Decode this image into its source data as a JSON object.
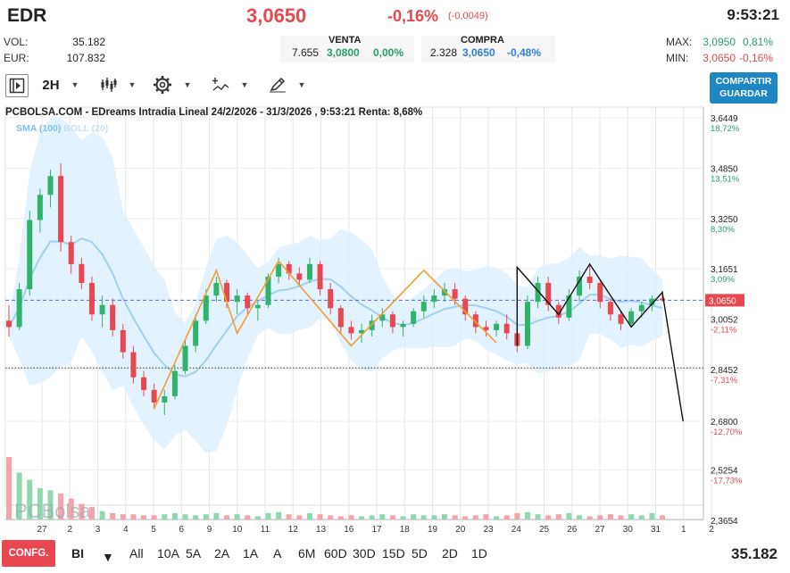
{
  "header": {
    "ticker": "EDR",
    "price": "3,0650",
    "change_pct": "-0,16%",
    "change_abs": "(-0,0049)",
    "time": "9:53:21"
  },
  "stats": {
    "vol_label": "VOL:",
    "vol_value": "35.182",
    "eur_label": "EUR:",
    "eur_value": "107.832",
    "max_label": "MAX:",
    "max_value": "3,0950",
    "max_pct": "0,81%",
    "min_label": "MIN:",
    "min_value": "3,0650",
    "min_pct": "-0,16%"
  },
  "orderbook": {
    "venta_label": "VENTA",
    "venta_qty": "7.655",
    "venta_price": "3,0800",
    "venta_pct": "0,00%",
    "compra_label": "COMPRA",
    "compra_qty": "2.328",
    "compra_price": "3,0650",
    "compra_pct": "-0,48%"
  },
  "toolbar": {
    "interval": "2H",
    "share_line1": "COMPARTIR",
    "share_line2": "GUARDAR"
  },
  "chart": {
    "title": "PCBOLSA.COM - EDreams Intradia Lineal 24/2/2026 - 31/3/2026 , 9:53:21 Renta: 8,68%",
    "sma_label": "SMA (100)",
    "boll_label": "BOLL (20)",
    "watermark": "PCBolsa",
    "current_price_tag": "3,0650",
    "colors": {
      "up": "#2fb36b",
      "down": "#e8474f",
      "zigzag": "#f0a030",
      "pattern": "#111111",
      "band": "#dcefff",
      "sma": "#9fd0f0"
    }
  },
  "chart_data": {
    "type": "candlestick",
    "title": "PCBOLSA.COM - EDreams Intradia Lineal 24/2/2026 - 31/3/2026 , 9:53:21 Renta: 8,68%",
    "y_axis_ticks": [
      {
        "value": "3,6449",
        "pct": "18,72%"
      },
      {
        "value": "3,4850",
        "pct": "13,51%"
      },
      {
        "value": "3,3250",
        "pct": "8,30%"
      },
      {
        "value": "3,1651",
        "pct": "3,09%"
      },
      {
        "value": "3,0052",
        "pct": "-2,11%"
      },
      {
        "value": "2,8452",
        "pct": "-7,31%"
      },
      {
        "value": "2,6800",
        "pct": "-12,70%"
      },
      {
        "value": "2,5254",
        "pct": "-17,73%"
      },
      {
        "value": "2,3654",
        "pct": ""
      }
    ],
    "x_axis_labels": [
      "27",
      "2",
      "3",
      "4",
      "5",
      "6",
      "9",
      "10",
      "11",
      "12",
      "13",
      "16",
      "17",
      "18",
      "19",
      "20",
      "23",
      "24",
      "25",
      "26",
      "27",
      "30",
      "31",
      "1",
      "2"
    ],
    "ylim": [
      2.3654,
      3.6449
    ],
    "current_price": 3.065,
    "reference_line": 2.85,
    "candles": [
      [
        3.0,
        3.05,
        2.95,
        2.98
      ],
      [
        2.98,
        3.12,
        2.97,
        3.1
      ],
      [
        3.1,
        3.35,
        3.08,
        3.32
      ],
      [
        3.32,
        3.42,
        3.28,
        3.4
      ],
      [
        3.4,
        3.48,
        3.36,
        3.46
      ],
      [
        3.46,
        3.5,
        3.22,
        3.25
      ],
      [
        3.25,
        3.27,
        3.15,
        3.18
      ],
      [
        3.18,
        3.2,
        3.1,
        3.12
      ],
      [
        3.12,
        3.14,
        3.0,
        3.02
      ],
      [
        3.02,
        3.08,
        2.98,
        3.05
      ],
      [
        3.05,
        3.07,
        2.95,
        2.97
      ],
      [
        2.97,
        2.99,
        2.88,
        2.9
      ],
      [
        2.9,
        2.92,
        2.8,
        2.82
      ],
      [
        2.82,
        2.84,
        2.76,
        2.78
      ],
      [
        2.78,
        2.8,
        2.72,
        2.74
      ],
      [
        2.74,
        2.78,
        2.7,
        2.76
      ],
      [
        2.76,
        2.86,
        2.75,
        2.84
      ],
      [
        2.84,
        2.94,
        2.83,
        2.92
      ],
      [
        2.92,
        3.02,
        2.9,
        3.0
      ],
      [
        3.0,
        3.1,
        2.99,
        3.08
      ],
      [
        3.08,
        3.14,
        3.06,
        3.12
      ],
      [
        3.12,
        3.13,
        3.04,
        3.06
      ],
      [
        3.06,
        3.1,
        3.02,
        3.08
      ],
      [
        3.08,
        3.09,
        3.02,
        3.04
      ],
      [
        3.04,
        3.06,
        3.0,
        3.05
      ],
      [
        3.05,
        3.15,
        3.04,
        3.14
      ],
      [
        3.14,
        3.2,
        3.12,
        3.18
      ],
      [
        3.18,
        3.19,
        3.13,
        3.15
      ],
      [
        3.15,
        3.17,
        3.11,
        3.13
      ],
      [
        3.13,
        3.2,
        3.12,
        3.18
      ],
      [
        3.18,
        3.19,
        3.08,
        3.1
      ],
      [
        3.1,
        3.12,
        3.02,
        3.04
      ],
      [
        3.04,
        3.05,
        2.96,
        2.98
      ],
      [
        2.98,
        3.0,
        2.94,
        2.96
      ],
      [
        2.96,
        2.99,
        2.93,
        2.97
      ],
      [
        2.97,
        3.02,
        2.95,
        3.0
      ],
      [
        3.0,
        3.04,
        2.98,
        3.02
      ],
      [
        3.02,
        3.03,
        2.96,
        2.98
      ],
      [
        2.98,
        3.0,
        2.95,
        2.99
      ],
      [
        2.99,
        3.04,
        2.98,
        3.03
      ],
      [
        3.03,
        3.08,
        3.01,
        3.06
      ],
      [
        3.06,
        3.1,
        3.04,
        3.08
      ],
      [
        3.08,
        3.12,
        3.06,
        3.1
      ],
      [
        3.1,
        3.12,
        3.05,
        3.07
      ],
      [
        3.07,
        3.08,
        3.0,
        3.02
      ],
      [
        3.02,
        3.03,
        2.96,
        2.98
      ],
      [
        2.98,
        3.0,
        2.95,
        2.97
      ],
      [
        2.97,
        3.0,
        2.95,
        2.99
      ],
      [
        2.99,
        3.02,
        2.94,
        2.96
      ],
      [
        2.96,
        2.98,
        2.9,
        2.92
      ],
      [
        2.92,
        3.08,
        2.91,
        3.06
      ],
      [
        3.06,
        3.14,
        3.04,
        3.12
      ],
      [
        3.12,
        3.14,
        3.03,
        3.05
      ],
      [
        3.05,
        3.06,
        2.99,
        3.01
      ],
      [
        3.01,
        3.1,
        3.0,
        3.08
      ],
      [
        3.08,
        3.16,
        3.06,
        3.14
      ],
      [
        3.14,
        3.18,
        3.1,
        3.12
      ],
      [
        3.12,
        3.13,
        3.04,
        3.06
      ],
      [
        3.06,
        3.07,
        3.0,
        3.02
      ],
      [
        3.02,
        3.03,
        2.97,
        2.99
      ],
      [
        2.99,
        3.04,
        2.98,
        3.03
      ],
      [
        3.03,
        3.06,
        3.01,
        3.05
      ],
      [
        3.05,
        3.08,
        3.03,
        3.07
      ],
      [
        3.07,
        3.095,
        3.06,
        3.065
      ]
    ],
    "volume": [
      60,
      45,
      38,
      30,
      28,
      25,
      20,
      15,
      12,
      8,
      6,
      5,
      5,
      4,
      4,
      5,
      6,
      5,
      4,
      5,
      6,
      4,
      5,
      4,
      3,
      6,
      7,
      5,
      4,
      6,
      5,
      4,
      3,
      4,
      3,
      4,
      5,
      4,
      3,
      5,
      4,
      4,
      5,
      4,
      3,
      4,
      5,
      3,
      4,
      6,
      7,
      5,
      4,
      5,
      6,
      4,
      3,
      4,
      5,
      4,
      5,
      4,
      6,
      4
    ]
  },
  "bottombar": {
    "config_label": "CONFG.",
    "mode_label": "BI",
    "ranges": [
      "All",
      "10A",
      "5A",
      "2A",
      "1A",
      "A",
      "6M",
      "60D",
      "30D",
      "15D",
      "5D",
      "2D",
      "1D"
    ],
    "volume_total": "35.182"
  }
}
